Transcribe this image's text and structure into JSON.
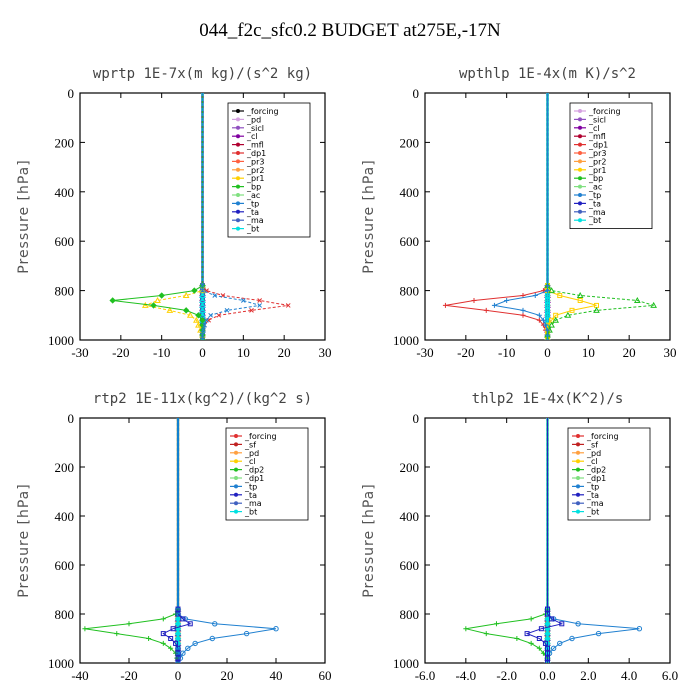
{
  "title": "044_f2c_sfc0.2  BUDGET at275E,-17N",
  "chart_data": [
    {
      "type": "line",
      "title": "wprtp  1E-7x(m kg)/(s^2 kg)",
      "ylabel": "Pressure [hPa]",
      "xlim": [
        -30,
        30
      ],
      "ylim": [
        1000,
        0
      ],
      "xticks": [
        "-30",
        "-20",
        "-10",
        "0",
        "10",
        "20",
        "30"
      ],
      "xtick_values": [
        -30,
        -20,
        -10,
        0,
        10,
        20,
        30
      ],
      "yticks": [
        "0",
        "200",
        "400",
        "600",
        "800",
        "1000"
      ],
      "y": [
        0,
        780,
        800,
        820,
        840,
        860,
        880,
        900,
        920,
        940,
        960,
        980,
        1000
      ],
      "series": [
        {
          "name": "_forcing",
          "color": "#000000",
          "values": [
            0,
            0,
            0,
            0,
            0,
            0,
            0,
            0,
            0,
            0,
            0,
            0,
            0
          ]
        },
        {
          "name": "_pd",
          "color": "#d4a0e0",
          "values": [
            0,
            0,
            0,
            0,
            0,
            0,
            0,
            0,
            0,
            0,
            0,
            0,
            0
          ]
        },
        {
          "name": "_sicl",
          "color": "#9050c0",
          "values": [
            0,
            0,
            0,
            0,
            0,
            0,
            0,
            0,
            0,
            0,
            0,
            0,
            0
          ]
        },
        {
          "name": "_cl",
          "color": "#8000a0",
          "values": [
            0,
            0,
            0,
            0,
            0,
            0,
            0,
            0,
            0,
            0,
            0,
            0,
            0
          ]
        },
        {
          "name": "_mfl",
          "color": "#b00030",
          "values": [
            0,
            0,
            0,
            0,
            0,
            0,
            0,
            0,
            0,
            0,
            0,
            0,
            0
          ]
        },
        {
          "name": "_dp1",
          "color": "#e03030",
          "values": [
            0,
            0,
            1,
            5,
            14,
            21,
            12,
            4,
            1.5,
            0.5,
            0.2,
            0,
            0
          ]
        },
        {
          "name": "_pr3",
          "color": "#ff6040",
          "values": [
            0,
            0,
            0,
            0,
            0,
            0,
            0,
            0,
            0,
            0,
            0,
            0,
            0
          ]
        },
        {
          "name": "_pr2",
          "color": "#ffa040",
          "values": [
            0,
            0,
            0,
            0,
            0,
            0,
            0,
            0,
            0,
            0,
            0,
            0,
            0
          ]
        },
        {
          "name": "_pr1",
          "color": "#ffd000",
          "values": [
            0,
            0,
            0,
            -4,
            -11,
            -14,
            -8,
            -3,
            -1.5,
            -1,
            -0.5,
            0,
            0
          ]
        },
        {
          "name": "_bp",
          "color": "#20c020",
          "values": [
            0,
            0,
            -2,
            -10,
            -22,
            -12,
            -4,
            -1,
            0,
            0,
            0,
            0,
            0
          ]
        },
        {
          "name": "_ac",
          "color": "#80e080",
          "values": [
            0,
            0,
            0,
            0,
            0,
            0,
            0,
            0,
            0,
            0,
            0,
            0,
            0
          ]
        },
        {
          "name": "_tp",
          "color": "#2080d0",
          "values": [
            0,
            0,
            0,
            3,
            10,
            14,
            6,
            2,
            1,
            0.5,
            0.2,
            0,
            0
          ]
        },
        {
          "name": "_ta",
          "color": "#2020c0",
          "values": [
            0,
            0,
            0,
            0,
            0,
            0,
            0,
            0,
            0,
            0,
            0,
            0,
            0
          ]
        },
        {
          "name": "_ma",
          "color": "#4060c0",
          "values": [
            0,
            0,
            0,
            0,
            0,
            0,
            0,
            0,
            0,
            0,
            0,
            0,
            0
          ]
        },
        {
          "name": "_bt",
          "color": "#00e0e0",
          "values": [
            0,
            0,
            0,
            0,
            0,
            0,
            0,
            0,
            0,
            0,
            0,
            0,
            0
          ]
        }
      ]
    },
    {
      "type": "line",
      "title": "wpthlp  1E-4x(m K)/s^2",
      "ylabel": "Pressure [hPa]",
      "xlim": [
        -30,
        30
      ],
      "ylim": [
        1000,
        0
      ],
      "xticks": [
        "-30",
        "-20",
        "-10",
        "0",
        "10",
        "20",
        "30"
      ],
      "xtick_values": [
        -30,
        -20,
        -10,
        0,
        10,
        20,
        30
      ],
      "yticks": [
        "0",
        "200",
        "400",
        "600",
        "800",
        "1000"
      ],
      "y": [
        0,
        780,
        800,
        820,
        840,
        860,
        880,
        900,
        920,
        940,
        960,
        980,
        1000
      ],
      "series": [
        {
          "name": "_forcing",
          "color": "#d4a0e0",
          "values": [
            0,
            0,
            0,
            0,
            0,
            0,
            0,
            0,
            0,
            0,
            0,
            0,
            0
          ]
        },
        {
          "name": "_sicl",
          "color": "#9050c0",
          "values": [
            0,
            0,
            0,
            0,
            0,
            0,
            0,
            0,
            0,
            0,
            0,
            0,
            0
          ]
        },
        {
          "name": "_cl",
          "color": "#8000a0",
          "values": [
            0,
            0,
            0,
            0,
            0,
            0,
            0,
            0,
            0,
            0,
            0,
            0,
            0
          ]
        },
        {
          "name": "_mfl",
          "color": "#b00030",
          "values": [
            0,
            0,
            0,
            0,
            0,
            0,
            0,
            0,
            0,
            0,
            0,
            0,
            0
          ]
        },
        {
          "name": "_dp1",
          "color": "#e03030",
          "values": [
            0,
            0,
            -1,
            -6,
            -18,
            -25,
            -15,
            -6,
            -2,
            -1,
            -0.5,
            0,
            0
          ]
        },
        {
          "name": "_pr3",
          "color": "#ff6040",
          "values": [
            0,
            0,
            0,
            0,
            0,
            0,
            0,
            0,
            0,
            0,
            0,
            0,
            0
          ]
        },
        {
          "name": "_pr2",
          "color": "#ffa040",
          "values": [
            0,
            0,
            0,
            0,
            0,
            0,
            0,
            0,
            0,
            0,
            0,
            0,
            0
          ]
        },
        {
          "name": "_pr1",
          "color": "#ffd000",
          "values": [
            0,
            0,
            0,
            3,
            8,
            12,
            6,
            2,
            1,
            0,
            0,
            0,
            0
          ]
        },
        {
          "name": "_bp",
          "color": "#20c020",
          "values": [
            0,
            0,
            1,
            8,
            22,
            26,
            12,
            5,
            2,
            1,
            0.5,
            0,
            0
          ]
        },
        {
          "name": "_ac",
          "color": "#80e080",
          "values": [
            0,
            0,
            0,
            0,
            0,
            0,
            0,
            0,
            0,
            0,
            0,
            0,
            0
          ]
        },
        {
          "name": "_tp",
          "color": "#2080d0",
          "values": [
            0,
            0,
            0,
            -3,
            -10,
            -13,
            -6,
            -2,
            -1,
            -0.5,
            0,
            0,
            0
          ]
        },
        {
          "name": "_ta",
          "color": "#2020c0",
          "values": [
            0,
            0,
            0,
            0,
            0,
            0,
            0,
            0,
            0,
            0,
            0,
            0,
            0
          ]
        },
        {
          "name": "_ma",
          "color": "#4060c0",
          "values": [
            0,
            0,
            0,
            0,
            0,
            0,
            0,
            0,
            0,
            0,
            0,
            0,
            0
          ]
        },
        {
          "name": "_bt",
          "color": "#00e0e0",
          "values": [
            0,
            0,
            0,
            0,
            0,
            0,
            0,
            0,
            0,
            0,
            0,
            0,
            0
          ]
        }
      ]
    },
    {
      "type": "line",
      "title": "rtp2  1E-11x(kg^2)/(kg^2 s)",
      "ylabel": "Pressure [hPa]",
      "xlim": [
        -40,
        60
      ],
      "ylim": [
        1000,
        0
      ],
      "xticks": [
        "-40",
        "-20",
        "0",
        "20",
        "40",
        "60"
      ],
      "xtick_values": [
        -40,
        -20,
        0,
        20,
        40,
        60
      ],
      "yticks": [
        "0",
        "200",
        "400",
        "600",
        "800",
        "1000"
      ],
      "y": [
        0,
        780,
        800,
        820,
        840,
        860,
        880,
        900,
        920,
        940,
        960,
        980,
        1000
      ],
      "series": [
        {
          "name": "_forcing",
          "color": "#e03030",
          "values": [
            0,
            0,
            0,
            0,
            0,
            0,
            0,
            0,
            0,
            0,
            0,
            0,
            0
          ]
        },
        {
          "name": "_sf",
          "color": "#c02020",
          "values": [
            0,
            0,
            0,
            0,
            0,
            0,
            0,
            0,
            0,
            0,
            0,
            0,
            0
          ]
        },
        {
          "name": "_pd",
          "color": "#ffa040",
          "values": [
            0,
            0,
            0,
            0,
            0,
            0,
            0,
            0,
            0,
            0,
            0,
            0,
            0
          ]
        },
        {
          "name": "_cl",
          "color": "#ffd000",
          "values": [
            0,
            0,
            0,
            0,
            0,
            0,
            0,
            0,
            0,
            0,
            0,
            0,
            0
          ]
        },
        {
          "name": "_dp2",
          "color": "#20c020",
          "values": [
            0,
            0,
            -1,
            -6,
            -20,
            -38,
            -25,
            -12,
            -6,
            -3,
            -1,
            -0.5,
            0
          ]
        },
        {
          "name": "_dp1",
          "color": "#80e080",
          "values": [
            0,
            0,
            0,
            0,
            0,
            0,
            0,
            0,
            0,
            0,
            0,
            0,
            0
          ]
        },
        {
          "name": "_tp",
          "color": "#2080d0",
          "values": [
            0,
            0,
            0,
            3,
            15,
            40,
            28,
            14,
            7,
            4,
            2,
            1,
            0
          ]
        },
        {
          "name": "_ta",
          "color": "#2020c0",
          "values": [
            0,
            0,
            0,
            2,
            5,
            -2,
            -6,
            -3,
            -1,
            0,
            0,
            0,
            0
          ]
        },
        {
          "name": "_ma",
          "color": "#4060c0",
          "values": [
            0,
            0,
            0,
            0,
            0,
            0,
            0,
            0,
            0,
            0,
            0,
            0,
            0
          ]
        },
        {
          "name": "_bt",
          "color": "#00e0e0",
          "values": [
            0,
            0,
            0,
            0,
            0,
            0,
            0,
            0,
            0,
            0,
            0,
            0,
            0
          ]
        }
      ]
    },
    {
      "type": "line",
      "title": "thlp2  1E-4x(K^2)/s",
      "ylabel": "Pressure [hPa]",
      "xlim": [
        -6,
        6
      ],
      "ylim": [
        1000,
        0
      ],
      "xticks": [
        "-6.0",
        "-4.0",
        "-2.0",
        "0.0",
        "2.0",
        "4.0",
        "6.0"
      ],
      "xtick_values": [
        -6,
        -4,
        -2,
        0,
        2,
        4,
        6
      ],
      "yticks": [
        "0",
        "200",
        "400",
        "600",
        "800",
        "1000"
      ],
      "y": [
        0,
        780,
        800,
        820,
        840,
        860,
        880,
        900,
        920,
        940,
        960,
        980,
        1000
      ],
      "series": [
        {
          "name": "_forcing",
          "color": "#e03030",
          "values": [
            0,
            0,
            0,
            0,
            0,
            0,
            0,
            0,
            0,
            0,
            0,
            0,
            0
          ]
        },
        {
          "name": "_sf",
          "color": "#c02020",
          "values": [
            0,
            0,
            0,
            0,
            0,
            0,
            0,
            0,
            0,
            0,
            0,
            0,
            0
          ]
        },
        {
          "name": "_pd",
          "color": "#ffa040",
          "values": [
            0,
            0,
            0,
            0,
            0,
            0,
            0,
            0,
            0,
            0,
            0,
            0,
            0
          ]
        },
        {
          "name": "_cl",
          "color": "#ffd000",
          "values": [
            0,
            0,
            0,
            0,
            0,
            0,
            0,
            0,
            0,
            0,
            0,
            0,
            0
          ]
        },
        {
          "name": "_dp2",
          "color": "#20c020",
          "values": [
            0,
            0,
            -0.1,
            -0.8,
            -2.5,
            -4.0,
            -3.0,
            -1.5,
            -0.8,
            -0.4,
            -0.2,
            0,
            0
          ]
        },
        {
          "name": "_dp1",
          "color": "#80e080",
          "values": [
            0,
            0,
            0,
            0,
            0,
            0,
            0,
            0,
            0,
            0,
            0,
            0,
            0
          ]
        },
        {
          "name": "_tp",
          "color": "#2080d0",
          "values": [
            0,
            0,
            0,
            0.3,
            1.5,
            4.5,
            2.5,
            1.2,
            0.6,
            0.3,
            0.1,
            0,
            0
          ]
        },
        {
          "name": "_ta",
          "color": "#2020c0",
          "values": [
            0,
            0,
            0,
            0.2,
            0.7,
            -0.3,
            -1.0,
            -0.4,
            -0.1,
            0,
            0,
            0,
            0
          ]
        },
        {
          "name": "_ma",
          "color": "#4060c0",
          "values": [
            0,
            0,
            0,
            0,
            0,
            0,
            0,
            0,
            0,
            0,
            0,
            0,
            0
          ]
        },
        {
          "name": "_bt",
          "color": "#00e0e0",
          "values": [
            0,
            0,
            0,
            0,
            0,
            0,
            0,
            0,
            0,
            0,
            0,
            0,
            0
          ]
        }
      ]
    }
  ]
}
